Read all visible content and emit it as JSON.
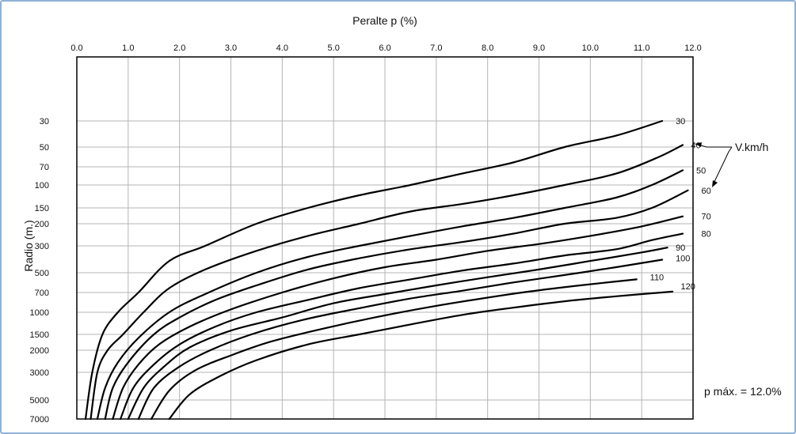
{
  "chart_data": {
    "type": "line",
    "title": "",
    "xlabel": "Peralte p (%)",
    "ylabel": "Radio (m.)",
    "xlim": [
      0,
      12
    ],
    "x_ticks": [
      "0.0",
      "1.0",
      "2.0",
      "3.0",
      "4.0",
      "5.0",
      "6.0",
      "7.0",
      "8.0",
      "9.0",
      "10.0",
      "11.0",
      "12.0"
    ],
    "y_ticks": [
      30,
      50,
      70,
      100,
      150,
      200,
      300,
      500,
      700,
      1000,
      1500,
      2000,
      3000,
      5000,
      7000
    ],
    "y_scale": "log-reversed",
    "grid": true,
    "series": [
      {
        "name": "30",
        "label_at": [
          11.6,
          30
        ],
        "x": [
          0.17,
          0.3,
          0.5,
          0.8,
          1.2,
          1.8,
          2.5,
          3.5,
          4.5,
          5.5,
          6.5,
          7.5,
          8.5,
          9.5,
          10.5,
          11.4
        ],
        "y": [
          7000,
          3000,
          1500,
          1000,
          700,
          400,
          300,
          200,
          150,
          120,
          100,
          80,
          65,
          50,
          40,
          30
        ]
      },
      {
        "name": "40",
        "label_at": [
          11.9,
          48
        ],
        "x": [
          0.27,
          0.4,
          0.6,
          0.9,
          1.3,
          1.8,
          2.5,
          3.5,
          4.5,
          5.5,
          6.5,
          7.5,
          8.5,
          9.5,
          10.5,
          11.3,
          11.8
        ],
        "y": [
          7000,
          3000,
          2000,
          1500,
          1000,
          650,
          470,
          330,
          250,
          200,
          160,
          140,
          120,
          100,
          80,
          60,
          48
        ]
      },
      {
        "name": "50",
        "label_at": [
          12.0,
          75
        ],
        "x": [
          0.4,
          0.55,
          0.8,
          1.2,
          1.8,
          2.5,
          3.5,
          4.5,
          5.5,
          6.5,
          7.5,
          8.5,
          9.5,
          10.5,
          11.2,
          11.8
        ],
        "y": [
          7000,
          4000,
          2500,
          1600,
          1000,
          720,
          500,
          370,
          300,
          250,
          210,
          180,
          150,
          125,
          100,
          75
        ]
      },
      {
        "name": "60",
        "label_at": [
          12.1,
          110
        ],
        "x": [
          0.55,
          0.7,
          1.0,
          1.5,
          2.0,
          2.7,
          3.5,
          4.5,
          5.5,
          6.5,
          7.5,
          8.5,
          9.5,
          10.5,
          11.2,
          11.9
        ],
        "y": [
          7000,
          4000,
          2500,
          1500,
          1100,
          800,
          620,
          470,
          380,
          320,
          280,
          240,
          200,
          180,
          150,
          110
        ]
      },
      {
        "name": "70",
        "label_at": [
          12.1,
          175
        ],
        "x": [
          0.7,
          0.9,
          1.2,
          1.6,
          2.2,
          3.0,
          4.0,
          5.0,
          6.0,
          7.0,
          8.0,
          9.0,
          10.0,
          11.0,
          11.8
        ],
        "y": [
          7000,
          4000,
          2600,
          1800,
          1300,
          950,
          700,
          550,
          450,
          390,
          330,
          290,
          250,
          210,
          175
        ]
      },
      {
        "name": "80",
        "label_at": [
          12.1,
          240
        ],
        "x": [
          0.85,
          1.1,
          1.5,
          2.0,
          2.7,
          3.5,
          4.5,
          5.5,
          6.5,
          7.5,
          8.5,
          9.5,
          10.5,
          11.2,
          11.8
        ],
        "y": [
          7000,
          4000,
          2600,
          1800,
          1300,
          1000,
          800,
          650,
          560,
          480,
          420,
          360,
          320,
          270,
          240
        ]
      },
      {
        "name": "90",
        "label_at": [
          11.6,
          310
        ],
        "x": [
          1.0,
          1.3,
          1.7,
          2.2,
          3.0,
          4.0,
          5.0,
          6.0,
          7.0,
          8.0,
          9.0,
          10.0,
          11.0,
          11.5
        ],
        "y": [
          7000,
          4000,
          2700,
          1900,
          1400,
          1100,
          850,
          720,
          620,
          540,
          470,
          400,
          340,
          310
        ]
      },
      {
        "name": "100",
        "label_at": [
          11.6,
          380
        ],
        "x": [
          1.2,
          1.5,
          2.0,
          2.6,
          3.4,
          4.4,
          5.5,
          6.5,
          7.5,
          8.5,
          9.5,
          10.5,
          11.4
        ],
        "y": [
          7000,
          4000,
          2700,
          2000,
          1500,
          1150,
          930,
          780,
          680,
          590,
          520,
          450,
          390
        ]
      },
      {
        "name": "110",
        "label_at": [
          11.1,
          540
        ],
        "x": [
          1.45,
          1.8,
          2.3,
          3.0,
          3.8,
          4.8,
          5.8,
          6.8,
          7.8,
          8.8,
          9.8,
          10.9
        ],
        "y": [
          7000,
          4200,
          2900,
          2200,
          1700,
          1350,
          1100,
          920,
          790,
          690,
          620,
          560
        ]
      },
      {
        "name": "120",
        "label_at": [
          11.7,
          630
        ],
        "x": [
          1.8,
          2.2,
          2.8,
          3.5,
          4.5,
          5.5,
          6.5,
          7.5,
          8.5,
          9.5,
          10.5,
          11.6
        ],
        "y": [
          7000,
          4500,
          3200,
          2400,
          1800,
          1500,
          1250,
          1050,
          920,
          820,
          750,
          690
        ]
      }
    ],
    "annotations": {
      "speed_legend": "V.km/h",
      "p_max": "p máx. = 12.0%"
    }
  },
  "colors": {
    "curve": "#000000",
    "grid": "#b5b5b5",
    "frame": "#8fb1d6"
  }
}
